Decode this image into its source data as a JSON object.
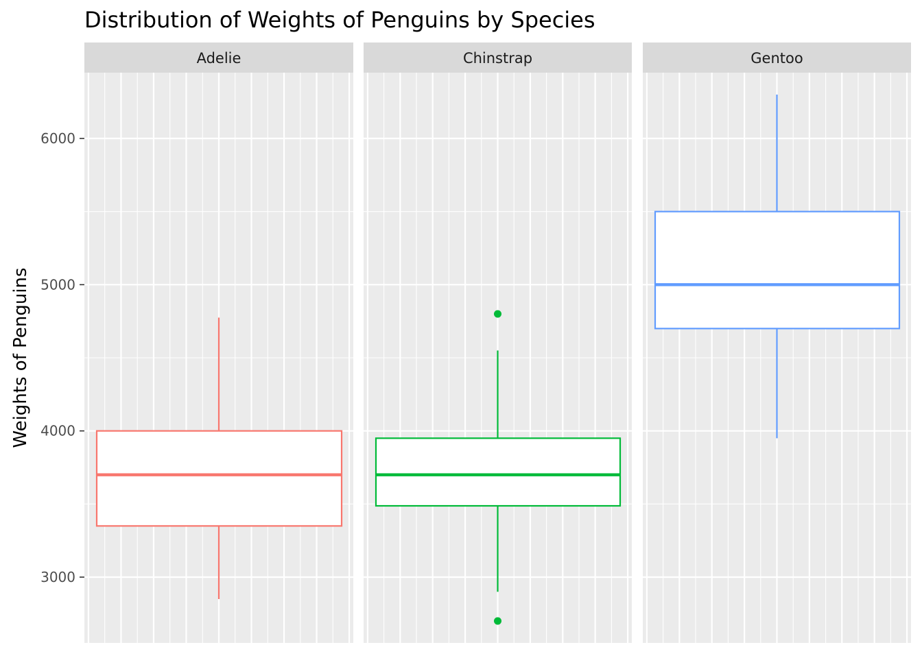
{
  "chart_data": {
    "type": "boxplot",
    "title": "Distribution of Weights of Penguins by Species",
    "xlabel": "",
    "ylabel": "Weights of Penguins",
    "ylim": [
      2550,
      6450
    ],
    "y_ticks": [
      3000,
      4000,
      5000,
      6000
    ],
    "y_tick_labels": [
      "3000",
      "4000",
      "5000",
      "6000"
    ],
    "grid": true,
    "legend": "none",
    "facets": [
      {
        "name": "Adelie",
        "color": "#F8766D",
        "whisker_low": 2850,
        "q1": 3350,
        "median": 3700,
        "q3": 4000,
        "whisker_high": 4775,
        "outliers": []
      },
      {
        "name": "Chinstrap",
        "color": "#00BA38",
        "whisker_low": 2900,
        "q1": 3487.5,
        "median": 3700,
        "q3": 3950,
        "whisker_high": 4550,
        "outliers": [
          4800,
          2700
        ]
      },
      {
        "name": "Gentoo",
        "color": "#619CFF",
        "whisker_low": 3950,
        "q1": 4700,
        "median": 5000,
        "q3": 5500,
        "whisker_high": 6300,
        "outliers": []
      }
    ]
  }
}
